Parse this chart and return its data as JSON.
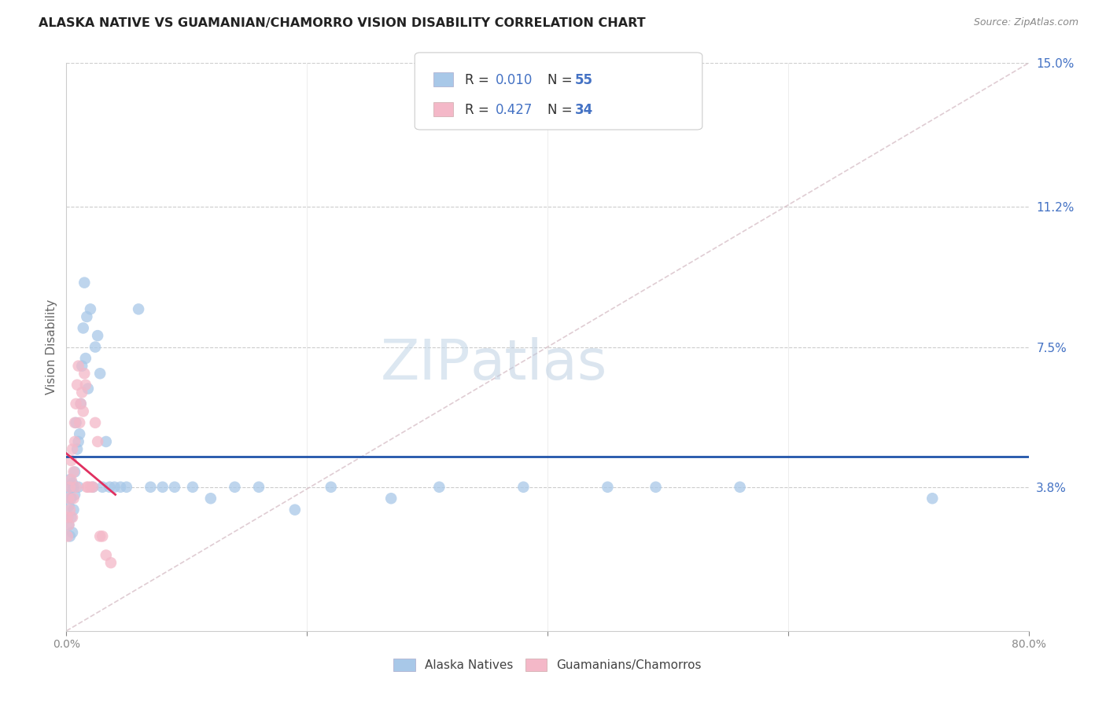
{
  "title": "ALASKA NATIVE VS GUAMANIAN/CHAMORRO VISION DISABILITY CORRELATION CHART",
  "source": "Source: ZipAtlas.com",
  "ylabel": "Vision Disability",
  "legend_label_1": "Alaska Natives",
  "legend_label_2": "Guamanians/Chamorros",
  "R1": 0.01,
  "N1": 55,
  "R2": 0.427,
  "N2": 34,
  "xlim": [
    0.0,
    0.8
  ],
  "ylim": [
    0.0,
    0.15
  ],
  "xticks": [
    0.0,
    0.2,
    0.4,
    0.6,
    0.8
  ],
  "xtick_labels": [
    "0.0%",
    "",
    "",
    "",
    "80.0%"
  ],
  "yticks_right": [
    0.038,
    0.075,
    0.112,
    0.15
  ],
  "ytick_labels_right": [
    "3.8%",
    "7.5%",
    "11.2%",
    "15.0%"
  ],
  "color_blue": "#a8c8e8",
  "color_pink": "#f4b8c8",
  "color_line_blue": "#2255aa",
  "color_line_pink": "#e03060",
  "color_diagonal": "#d8c0c8",
  "background": "#ffffff",
  "watermark_zip": "ZIP",
  "watermark_atlas": "atlas",
  "alaska_x": [
    0.001,
    0.001,
    0.002,
    0.002,
    0.003,
    0.003,
    0.003,
    0.004,
    0.004,
    0.005,
    0.005,
    0.006,
    0.006,
    0.007,
    0.007,
    0.008,
    0.009,
    0.01,
    0.01,
    0.011,
    0.012,
    0.013,
    0.014,
    0.015,
    0.016,
    0.017,
    0.018,
    0.02,
    0.022,
    0.024,
    0.026,
    0.028,
    0.03,
    0.033,
    0.036,
    0.04,
    0.045,
    0.05,
    0.06,
    0.07,
    0.08,
    0.09,
    0.105,
    0.12,
    0.14,
    0.16,
    0.19,
    0.22,
    0.27,
    0.31,
    0.38,
    0.45,
    0.49,
    0.56,
    0.72
  ],
  "alaska_y": [
    0.03,
    0.036,
    0.028,
    0.033,
    0.025,
    0.038,
    0.04,
    0.03,
    0.035,
    0.026,
    0.039,
    0.032,
    0.038,
    0.042,
    0.036,
    0.055,
    0.048,
    0.05,
    0.038,
    0.052,
    0.06,
    0.07,
    0.08,
    0.092,
    0.072,
    0.083,
    0.064,
    0.085,
    0.038,
    0.075,
    0.078,
    0.068,
    0.038,
    0.05,
    0.038,
    0.038,
    0.038,
    0.038,
    0.085,
    0.038,
    0.038,
    0.038,
    0.038,
    0.035,
    0.038,
    0.038,
    0.032,
    0.038,
    0.035,
    0.038,
    0.038,
    0.038,
    0.038,
    0.038,
    0.035
  ],
  "guam_x": [
    0.001,
    0.001,
    0.002,
    0.002,
    0.003,
    0.003,
    0.004,
    0.004,
    0.005,
    0.005,
    0.006,
    0.006,
    0.007,
    0.007,
    0.008,
    0.008,
    0.009,
    0.01,
    0.011,
    0.012,
    0.013,
    0.014,
    0.015,
    0.016,
    0.017,
    0.018,
    0.02,
    0.022,
    0.024,
    0.026,
    0.028,
    0.03,
    0.033,
    0.037
  ],
  "guam_y": [
    0.025,
    0.03,
    0.028,
    0.035,
    0.032,
    0.038,
    0.04,
    0.045,
    0.03,
    0.048,
    0.035,
    0.042,
    0.05,
    0.055,
    0.038,
    0.06,
    0.065,
    0.07,
    0.055,
    0.06,
    0.063,
    0.058,
    0.068,
    0.065,
    0.038,
    0.038,
    0.038,
    0.038,
    0.055,
    0.05,
    0.025,
    0.025,
    0.02,
    0.018
  ]
}
